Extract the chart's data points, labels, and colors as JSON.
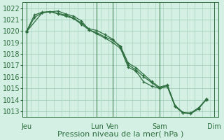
{
  "bg_color": "#d4efe4",
  "grid_color": "#a0ccb4",
  "line_color": "#2d6e3e",
  "ylim": [
    1012.5,
    1022.5
  ],
  "yticks": [
    1013,
    1014,
    1015,
    1016,
    1017,
    1018,
    1019,
    1020,
    1021,
    1022
  ],
  "xlabel": "Pression niveau de la mer( hPa )",
  "xtick_labels": [
    "Jeu",
    "",
    "Lun",
    "Ven",
    "",
    "Sam",
    "",
    "Dim"
  ],
  "xtick_positions": [
    0,
    5,
    9,
    11,
    14,
    17,
    21,
    24
  ],
  "day_lines": [
    0,
    9,
    11,
    17,
    24
  ],
  "xlim": [
    -0.5,
    24.5
  ],
  "series": [
    {
      "x": [
        0,
        1,
        2,
        3,
        4,
        5,
        6,
        7,
        8,
        9,
        10,
        11,
        12,
        13,
        14,
        15,
        16,
        17,
        18,
        19,
        20,
        21,
        22,
        23
      ],
      "y": [
        1019.9,
        1021.2,
        1021.6,
        1021.7,
        1021.5,
        1021.3,
        1021.1,
        1020.6,
        1020.1,
        1019.85,
        1019.5,
        1019.2,
        1018.7,
        1017.2,
        1016.8,
        1016.2,
        1015.6,
        1015.1,
        1015.3,
        1013.5,
        1012.9,
        1012.85,
        1013.3,
        1014.05
      ],
      "marker": "+"
    },
    {
      "x": [
        0,
        1,
        2,
        3,
        4,
        5,
        6,
        7,
        8,
        9,
        10,
        11,
        12,
        13,
        14,
        15,
        16,
        17,
        18,
        19,
        20,
        21,
        22,
        23
      ],
      "y": [
        1020.0,
        1021.4,
        1021.65,
        1021.7,
        1021.55,
        1021.4,
        1021.15,
        1020.7,
        1020.2,
        1020.05,
        1019.7,
        1019.3,
        1018.6,
        1017.05,
        1016.6,
        1016.0,
        1015.5,
        1015.0,
        1015.15,
        1013.4,
        1012.85,
        1012.8,
        1013.2,
        1014.1
      ],
      "marker": "+"
    },
    {
      "x": [
        0,
        2,
        4,
        5,
        6,
        7,
        8,
        9,
        10,
        11,
        12,
        13,
        14,
        15,
        16,
        17,
        18,
        19,
        20,
        21,
        22,
        23
      ],
      "y": [
        1019.95,
        1021.6,
        1021.75,
        1021.5,
        1021.3,
        1020.9,
        1020.1,
        1019.75,
        1019.4,
        1019.0,
        1018.5,
        1016.85,
        1016.5,
        1015.55,
        1015.2,
        1015.0,
        1015.25,
        1013.45,
        1012.85,
        1012.8,
        1013.25,
        1014.0
      ],
      "marker": "+"
    }
  ],
  "marker_size": 3.5,
  "linewidth": 0.9,
  "xlabel_fontsize": 8,
  "tick_fontsize": 7
}
